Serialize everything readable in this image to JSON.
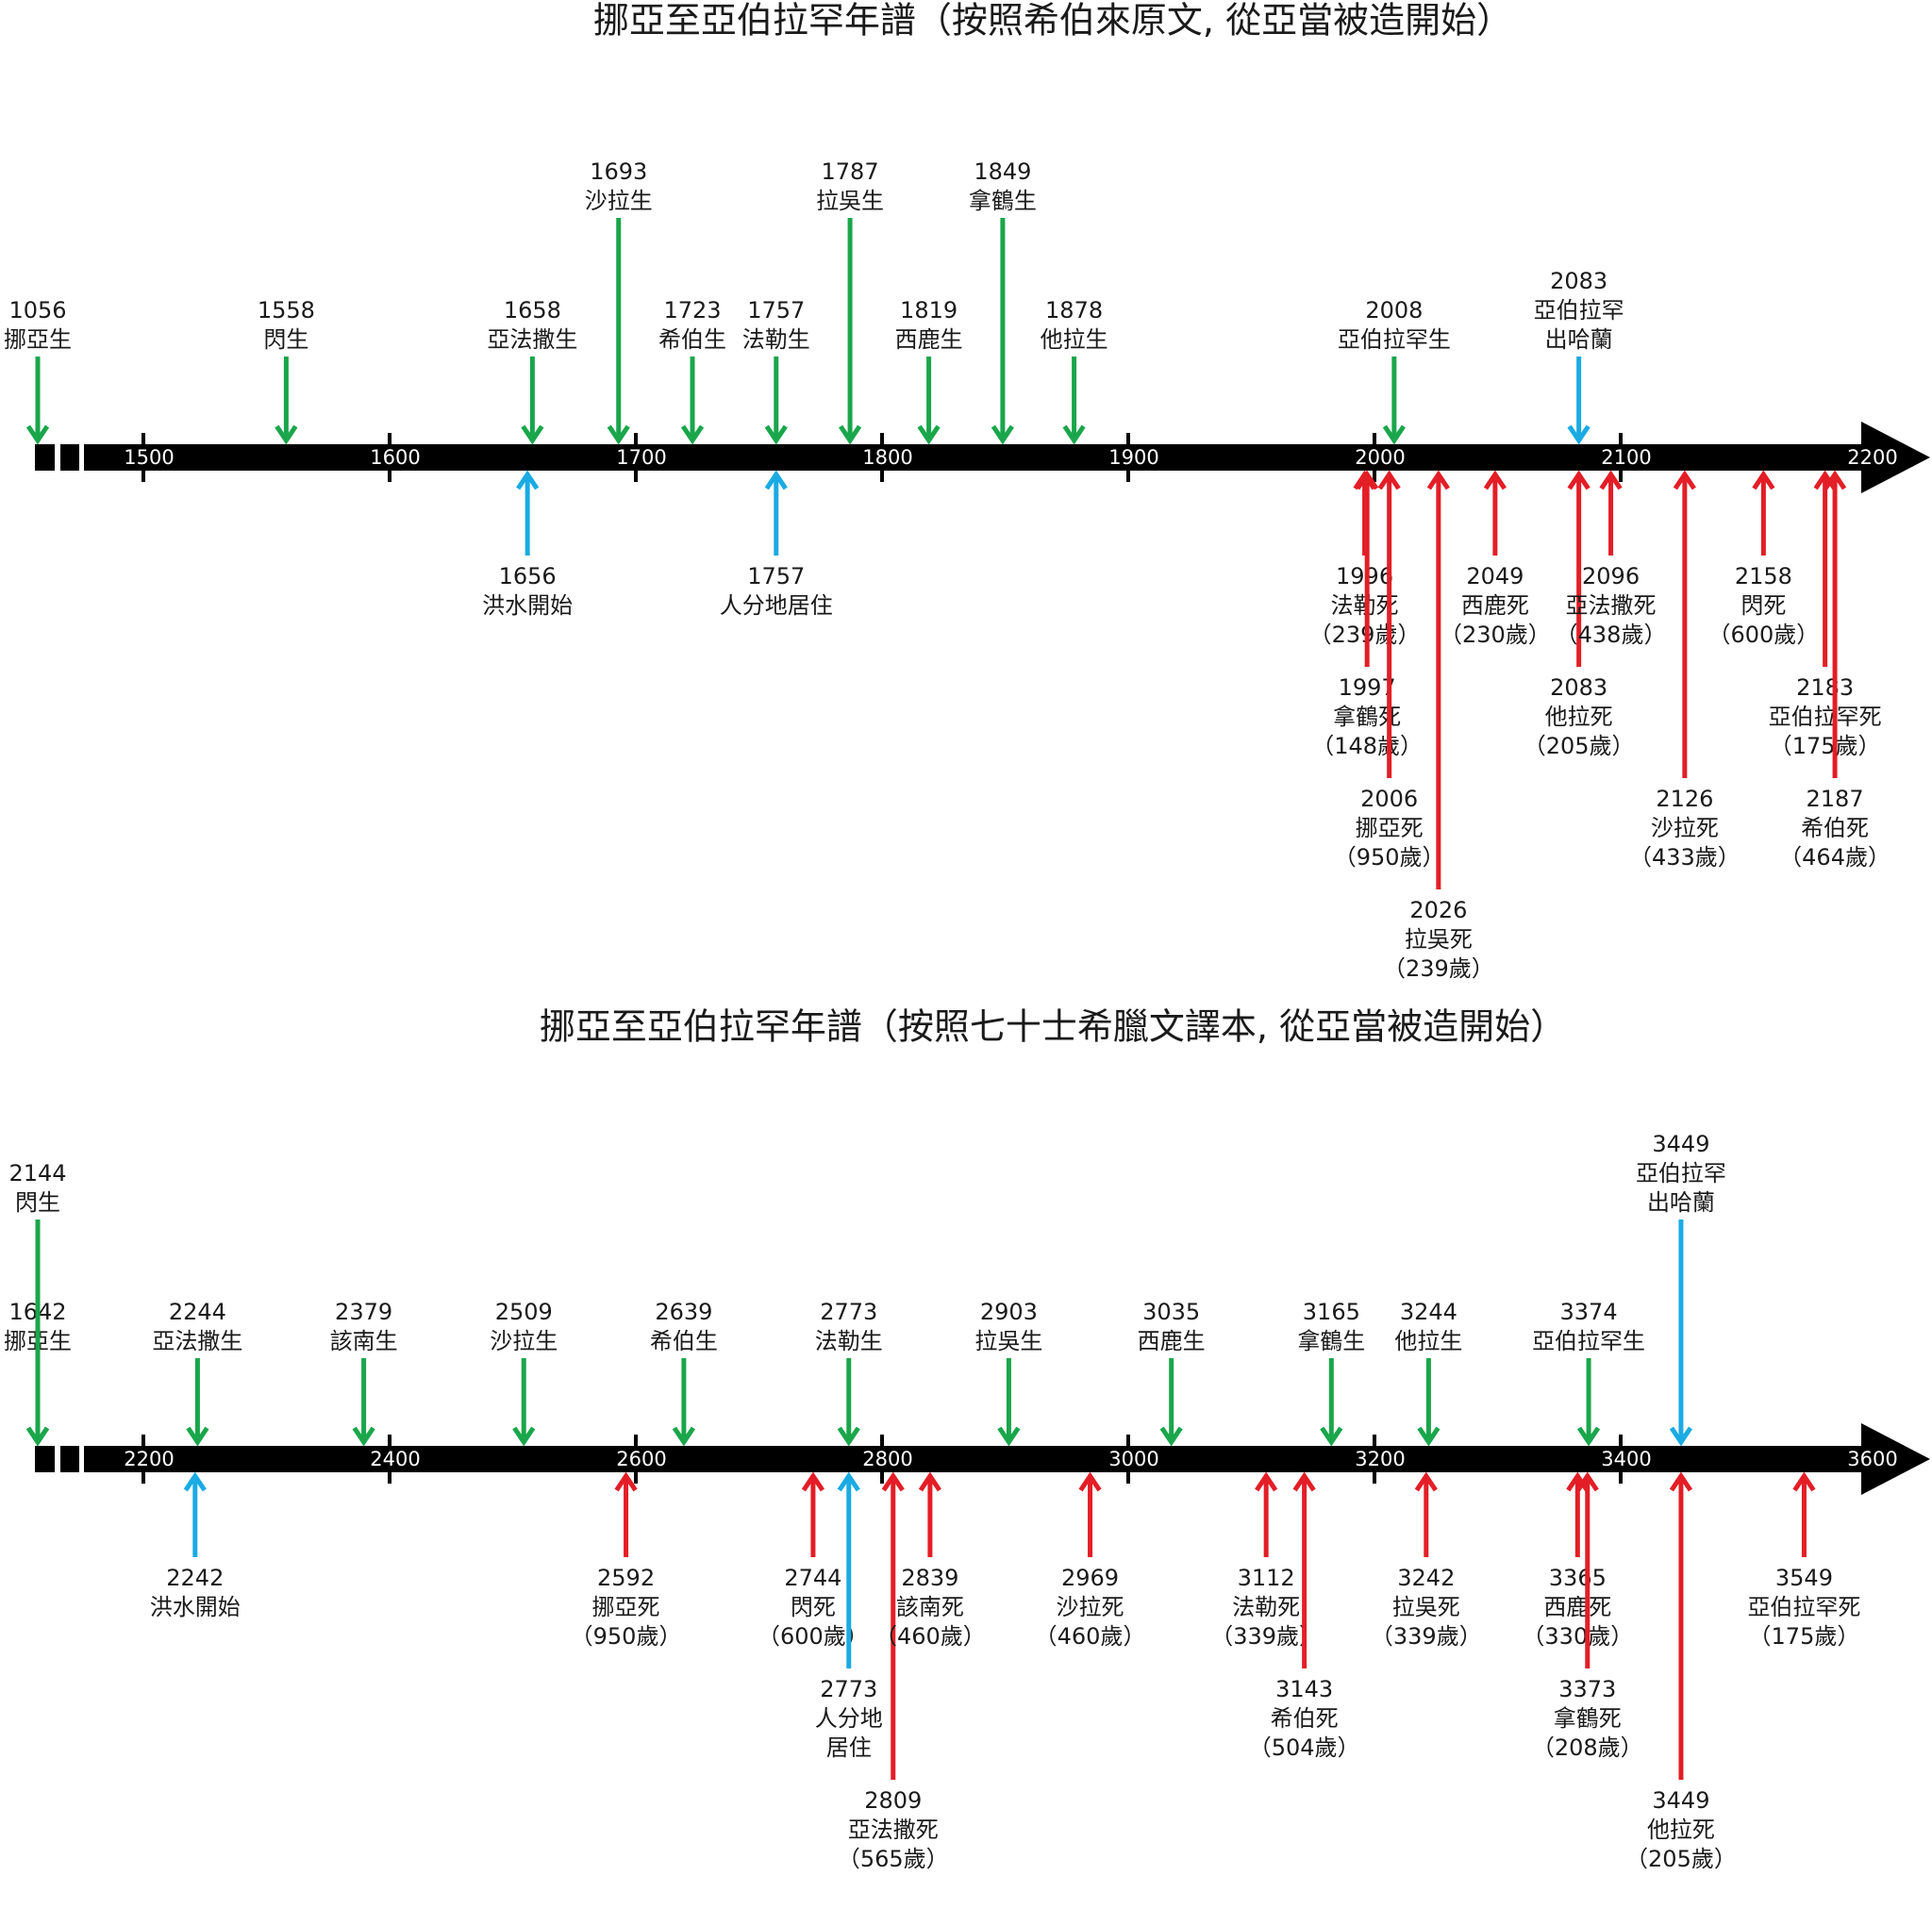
{
  "timelines": [
    {
      "title": "挪亞至亞伯拉罕年譜（按照希伯來原文, 從亞當被造開始）",
      "xlim": [
        1500,
        2200
      ],
      "ticks": [
        1500,
        1600,
        1700,
        1800,
        1900,
        2000,
        2100,
        2200
      ],
      "events": [
        {
          "year": 1056,
          "lines": [
            "挪亞生"
          ],
          "side": "above",
          "color": "#1aa64b"
        },
        {
          "year": 1558,
          "lines": [
            "閃生"
          ],
          "side": "above",
          "color": "#1aa64b"
        },
        {
          "year": 1658,
          "lines": [
            "亞法撒生"
          ],
          "side": "above",
          "color": "#1aa64b"
        },
        {
          "year": 1693,
          "lines": [
            "沙拉生"
          ],
          "side": "above",
          "color": "#1aa64b"
        },
        {
          "year": 1723,
          "lines": [
            "希伯生"
          ],
          "side": "above",
          "color": "#1aa64b"
        },
        {
          "year": 1757,
          "lines": [
            "法勒生"
          ],
          "side": "above",
          "color": "#1aa64b"
        },
        {
          "year": 1787,
          "lines": [
            "拉吳生"
          ],
          "side": "above",
          "color": "#1aa64b"
        },
        {
          "year": 1819,
          "lines": [
            "西鹿生"
          ],
          "side": "above",
          "color": "#1aa64b"
        },
        {
          "year": 1849,
          "lines": [
            "拿鶴生"
          ],
          "side": "above",
          "color": "#1aa64b"
        },
        {
          "year": 1878,
          "lines": [
            "他拉生"
          ],
          "side": "above",
          "color": "#1aa64b"
        },
        {
          "year": 2008,
          "lines": [
            "亞伯拉罕生"
          ],
          "side": "above",
          "color": "#1aa64b"
        },
        {
          "year": 2083,
          "lines": [
            "亞伯拉罕",
            "出哈蘭"
          ],
          "side": "above",
          "color": "#1aabe3"
        },
        {
          "year": 1656,
          "lines": [
            "洪水開始"
          ],
          "side": "below",
          "color": "#1aabe3"
        },
        {
          "year": 1757,
          "lines": [
            "人分地居住"
          ],
          "side": "below",
          "color": "#1aabe3"
        },
        {
          "year": 1996,
          "lines": [
            "法勒死"
          ],
          "age": "（239歲）",
          "side": "below",
          "color": "#e31e26"
        },
        {
          "year": 1997,
          "lines": [
            "拿鶴死"
          ],
          "age": "（148歲）",
          "side": "below",
          "color": "#e31e26"
        },
        {
          "year": 2006,
          "lines": [
            "挪亞死"
          ],
          "age": "（950歲）",
          "side": "below",
          "color": "#e31e26"
        },
        {
          "year": 2026,
          "lines": [
            "拉吳死"
          ],
          "age": "（239歲）",
          "side": "below",
          "color": "#e31e26"
        },
        {
          "year": 2049,
          "lines": [
            "西鹿死"
          ],
          "age": "（230歲）",
          "side": "below",
          "color": "#e31e26"
        },
        {
          "year": 2083,
          "lines": [
            "他拉死"
          ],
          "age": "（205歲）",
          "side": "below",
          "color": "#e31e26"
        },
        {
          "year": 2096,
          "lines": [
            "亞法撒死"
          ],
          "age": "（438歲）",
          "side": "below",
          "color": "#e31e26"
        },
        {
          "year": 2126,
          "lines": [
            "沙拉死"
          ],
          "age": "（433歲）",
          "side": "below",
          "color": "#e31e26"
        },
        {
          "year": 2158,
          "lines": [
            "閃死"
          ],
          "age": "（600歲）",
          "side": "below",
          "color": "#e31e26"
        },
        {
          "year": 2183,
          "lines": [
            "亞伯拉罕死"
          ],
          "age": "（175歲）",
          "side": "below",
          "color": "#e31e26"
        },
        {
          "year": 2187,
          "lines": [
            "希伯死"
          ],
          "age": "（464歲）",
          "side": "below",
          "color": "#e31e26"
        }
      ]
    },
    {
      "title": "挪亞至亞伯拉罕年譜（按照七十士希臘文譯本, 從亞當被造開始）",
      "xlim": [
        2200,
        3600
      ],
      "ticks": [
        2200,
        2400,
        2600,
        2800,
        3000,
        3200,
        3400,
        3600
      ],
      "events": [
        {
          "year": 1642,
          "lines": [
            "挪亞生"
          ],
          "side": "above",
          "color": "#1aa64b"
        },
        {
          "year": 2144,
          "lines": [
            "閃生"
          ],
          "side": "above",
          "color": "#1aa64b"
        },
        {
          "year": 2244,
          "lines": [
            "亞法撒生"
          ],
          "side": "above",
          "color": "#1aa64b"
        },
        {
          "year": 2379,
          "lines": [
            "該南生"
          ],
          "side": "above",
          "color": "#1aa64b",
          "text_color": "#4152a8"
        },
        {
          "year": 2509,
          "lines": [
            "沙拉生"
          ],
          "side": "above",
          "color": "#1aa64b"
        },
        {
          "year": 2639,
          "lines": [
            "希伯生"
          ],
          "side": "above",
          "color": "#1aa64b"
        },
        {
          "year": 2773,
          "lines": [
            "法勒生"
          ],
          "side": "above",
          "color": "#1aa64b"
        },
        {
          "year": 2903,
          "lines": [
            "拉吳生"
          ],
          "side": "above",
          "color": "#1aa64b"
        },
        {
          "year": 3035,
          "lines": [
            "西鹿生"
          ],
          "side": "above",
          "color": "#1aa64b"
        },
        {
          "year": 3165,
          "lines": [
            "拿鶴生"
          ],
          "side": "above",
          "color": "#1aa64b"
        },
        {
          "year": 3244,
          "lines": [
            "他拉生"
          ],
          "side": "above",
          "color": "#1aa64b"
        },
        {
          "year": 3374,
          "lines": [
            "亞伯拉罕生"
          ],
          "side": "above",
          "color": "#1aa64b"
        },
        {
          "year": 3449,
          "lines": [
            "亞伯拉罕",
            "出哈蘭"
          ],
          "side": "above",
          "color": "#1aabe3"
        },
        {
          "year": 2242,
          "lines": [
            "洪水開始"
          ],
          "side": "below",
          "color": "#1aabe3"
        },
        {
          "year": 2592,
          "lines": [
            "挪亞死"
          ],
          "age": "（950歲）",
          "side": "below",
          "color": "#e31e26"
        },
        {
          "year": 2744,
          "lines": [
            "閃死"
          ],
          "age": "（600歲）",
          "side": "below",
          "color": "#e31e26"
        },
        {
          "year": 2773,
          "lines": [
            "人分地",
            "居住"
          ],
          "side": "below",
          "color": "#1aabe3"
        },
        {
          "year": 2809,
          "lines": [
            "亞法撒死"
          ],
          "age": "（565歲）",
          "side": "below",
          "color": "#e31e26"
        },
        {
          "year": 2839,
          "lines": [
            "該南死"
          ],
          "age": "（460歲）",
          "side": "below",
          "color": "#e31e26"
        },
        {
          "year": 2969,
          "lines": [
            "沙拉死"
          ],
          "age": "（460歲）",
          "side": "below",
          "color": "#e31e26"
        },
        {
          "year": 3112,
          "lines": [
            "法勒死"
          ],
          "age": "（339歲）",
          "side": "below",
          "color": "#e31e26"
        },
        {
          "year": 3143,
          "lines": [
            "希伯死"
          ],
          "age": "（504歲）",
          "side": "below",
          "color": "#e31e26"
        },
        {
          "year": 3242,
          "lines": [
            "拉吳死"
          ],
          "age": "（339歲）",
          "side": "below",
          "color": "#e31e26"
        },
        {
          "year": 3365,
          "lines": [
            "西鹿死"
          ],
          "age": "（330歲）",
          "side": "below",
          "color": "#e31e26"
        },
        {
          "year": 3373,
          "lines": [
            "拿鶴死"
          ],
          "age": "（208歲）",
          "side": "below",
          "color": "#e31e26"
        },
        {
          "year": 3449,
          "lines": [
            "他拉死"
          ],
          "age": "（205歲）",
          "side": "below",
          "color": "#e31e26"
        },
        {
          "year": 3549,
          "lines": [
            "亞伯拉罕死"
          ],
          "age": "（175歲）",
          "side": "below",
          "color": "#e31e26"
        }
      ]
    }
  ]
}
